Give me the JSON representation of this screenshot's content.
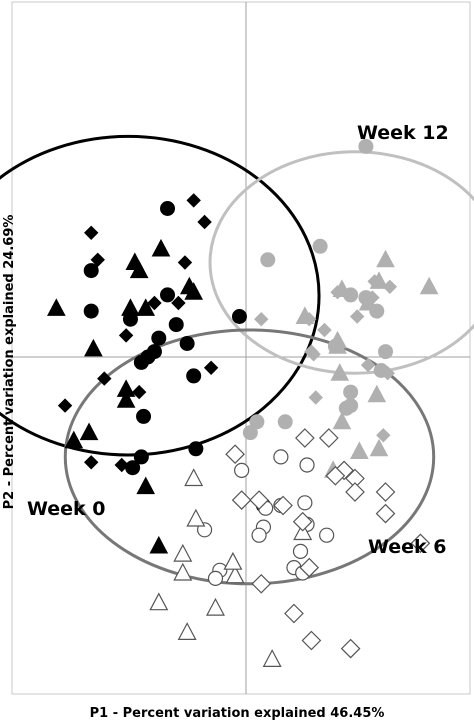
{
  "chart_data": {
    "type": "scatter",
    "title": "",
    "xlabel": "P1 - Percent variation explained 46.45%",
    "ylabel": "P2 - Percent variation explained 24.69%",
    "xlim": [
      -1,
      1
    ],
    "ylim": [
      -1,
      1
    ],
    "grid": false,
    "zero_lines": true,
    "colors": {
      "frame": "#c8c8c8",
      "zero_line": "#a0a0a0",
      "week0": "#000000",
      "week12": "#b0b0b0",
      "week6_outline": "#555555",
      "ellipse_week0": "#000000",
      "ellipse_week12": "#c0c0c0",
      "ellipse_week6": "#777777"
    },
    "groups": [
      {
        "label": "Week 0",
        "ellipse": {
          "cx": -0.54,
          "cy": 0.227,
          "rx": 0.875,
          "ry": 0.59
        }
      },
      {
        "label": "Week 12",
        "ellipse": {
          "cx": 0.5,
          "cy": 0.35,
          "rx": 0.665,
          "ry": 0.41
        }
      },
      {
        "label": "Week 6",
        "ellipse": {
          "cx": 0.016,
          "cy": -0.37,
          "rx": 0.845,
          "ry": 0.47
        }
      }
    ],
    "series": [
      {
        "group": "Week 0",
        "style": "filled-black",
        "circle": [
          [
            -0.36,
            0.55
          ],
          [
            -0.71,
            0.32
          ],
          [
            -0.36,
            0.23
          ],
          [
            -0.71,
            0.17
          ],
          [
            -0.53,
            0.14
          ],
          [
            -0.32,
            0.12
          ],
          [
            -0.03,
            0.15
          ],
          [
            -0.27,
            0.05
          ],
          [
            -0.4,
            0.07
          ],
          [
            -0.42,
            0.02
          ],
          [
            -0.45,
            0.0
          ],
          [
            -0.48,
            -0.02
          ],
          [
            -0.24,
            -0.07
          ],
          [
            -0.47,
            -0.22
          ],
          [
            -0.23,
            -0.34
          ],
          [
            -0.48,
            -0.37
          ],
          [
            -0.52,
            -0.41
          ],
          [
            0.08,
            -0.55
          ]
        ],
        "triangle": [
          [
            -0.87,
            0.18
          ],
          [
            -0.39,
            0.4
          ],
          [
            -0.51,
            0.35
          ],
          [
            -0.49,
            0.32
          ],
          [
            -0.26,
            0.26
          ],
          [
            -0.53,
            0.18
          ],
          [
            -0.46,
            0.18
          ],
          [
            -0.24,
            0.24
          ],
          [
            -0.7,
            0.03
          ],
          [
            -0.55,
            -0.12
          ],
          [
            -0.55,
            -0.16
          ],
          [
            -0.72,
            -0.28
          ],
          [
            -0.79,
            -0.31
          ],
          [
            -0.46,
            -0.48
          ],
          [
            -0.4,
            -0.7
          ]
        ],
        "diamond": [
          [
            -0.71,
            0.46
          ],
          [
            -0.24,
            0.58
          ],
          [
            -0.19,
            0.5
          ],
          [
            -0.68,
            0.36
          ],
          [
            -0.28,
            0.35
          ],
          [
            -0.42,
            0.2
          ],
          [
            -0.31,
            0.2
          ],
          [
            -0.55,
            0.08
          ],
          [
            -0.16,
            -0.04
          ],
          [
            -0.65,
            -0.08
          ],
          [
            -0.49,
            -0.13
          ],
          [
            -0.83,
            -0.18
          ],
          [
            -0.57,
            -0.4
          ],
          [
            -0.71,
            -0.39
          ]
        ]
      },
      {
        "group": "Week 12",
        "style": "filled-gray",
        "circle": [
          [
            0.34,
            0.41
          ],
          [
            0.55,
            0.78
          ],
          [
            0.48,
            0.23
          ],
          [
            0.55,
            0.22
          ],
          [
            0.6,
            0.17
          ],
          [
            0.64,
            0.02
          ],
          [
            0.62,
            -0.05
          ],
          [
            0.48,
            -0.13
          ],
          [
            0.1,
            0.36
          ],
          [
            0.48,
            -0.18
          ],
          [
            0.46,
            -0.19
          ],
          [
            0.05,
            -0.24
          ],
          [
            0.18,
            -0.24
          ],
          [
            0.02,
            -0.28
          ],
          [
            0.41,
            0.04
          ]
        ],
        "triangle": [
          [
            0.44,
            0.25
          ],
          [
            0.56,
            0.2
          ],
          [
            0.61,
            0.28
          ],
          [
            0.64,
            0.36
          ],
          [
            0.42,
            0.06
          ],
          [
            0.42,
            0.04
          ],
          [
            0.43,
            -0.06
          ],
          [
            0.6,
            -0.14
          ],
          [
            0.84,
            0.26
          ],
          [
            0.27,
            0.15
          ],
          [
            0.44,
            -0.24
          ],
          [
            0.52,
            -0.35
          ],
          [
            0.61,
            -0.34
          ],
          [
            0.4,
            -0.42
          ]
        ],
        "diamond": [
          [
            0.42,
            0.24
          ],
          [
            0.59,
            0.28
          ],
          [
            0.58,
            0.22
          ],
          [
            0.51,
            0.15
          ],
          [
            0.66,
            0.26
          ],
          [
            0.3,
            0.02
          ],
          [
            0.31,
            0.01
          ],
          [
            0.36,
            0.1
          ],
          [
            0.29,
            0.14
          ],
          [
            0.56,
            -0.03
          ],
          [
            0.65,
            -0.06
          ],
          [
            0.07,
            0.14
          ],
          [
            0.32,
            -0.15
          ],
          [
            0.63,
            -0.29
          ]
        ]
      },
      {
        "group": "Week 6",
        "style": "open",
        "circle": [
          [
            -0.02,
            -0.42
          ],
          [
            0.28,
            -0.4
          ],
          [
            0.16,
            -0.37
          ],
          [
            0.09,
            -0.56
          ],
          [
            0.16,
            -0.55
          ],
          [
            0.27,
            -0.54
          ],
          [
            0.08,
            -0.63
          ],
          [
            0.28,
            -0.62
          ],
          [
            0.25,
            -0.72
          ],
          [
            0.22,
            -0.78
          ],
          [
            0.26,
            -0.8
          ],
          [
            -0.12,
            -0.79
          ],
          [
            -0.14,
            -0.82
          ],
          [
            -0.19,
            -0.64
          ],
          [
            0.06,
            -0.66
          ],
          [
            0.37,
            -0.66
          ]
        ],
        "triangle": [
          [
            -0.24,
            -0.45
          ],
          [
            -0.29,
            -0.73
          ],
          [
            -0.29,
            -0.8
          ],
          [
            -0.4,
            -0.91
          ],
          [
            -0.05,
            -0.81
          ],
          [
            -0.14,
            -0.93
          ],
          [
            -0.27,
            -1.02
          ],
          [
            0.12,
            -1.12
          ],
          [
            0.26,
            -0.65
          ],
          [
            -0.06,
            -0.76
          ],
          [
            -0.23,
            -0.6
          ]
        ],
        "diamond": [
          [
            -0.05,
            -0.36
          ],
          [
            0.27,
            -0.3
          ],
          [
            0.38,
            -0.3
          ],
          [
            0.45,
            -0.42
          ],
          [
            0.5,
            -0.45
          ],
          [
            -0.02,
            -0.53
          ],
          [
            0.17,
            -0.55
          ],
          [
            0.06,
            -0.53
          ],
          [
            0.26,
            -0.61
          ],
          [
            0.5,
            -0.5
          ],
          [
            0.41,
            -0.44
          ],
          [
            0.64,
            -0.5
          ],
          [
            0.29,
            -0.78
          ],
          [
            0.07,
            -0.84
          ],
          [
            0.64,
            -0.58
          ],
          [
            0.8,
            -0.69
          ],
          [
            0.3,
            -1.05
          ],
          [
            0.48,
            -1.08
          ],
          [
            0.22,
            -0.95
          ]
        ]
      }
    ]
  }
}
